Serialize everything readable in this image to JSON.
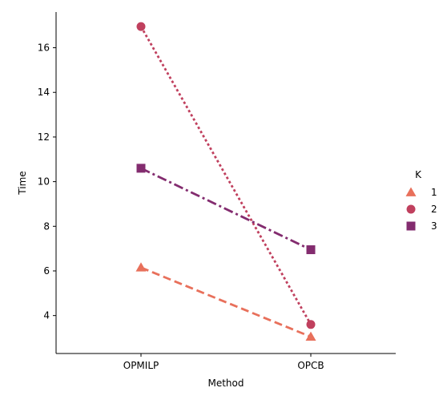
{
  "chart_data": {
    "type": "line",
    "xlabel": "Method",
    "ylabel": "Time",
    "categories": [
      "OPMILP",
      "OPCB"
    ],
    "ylim": [
      2.3,
      17.6
    ],
    "yticks": [
      4,
      6,
      8,
      10,
      12,
      14,
      16
    ],
    "grid": false,
    "legend": {
      "title": "K",
      "placement": "right",
      "entries": [
        "1",
        "2",
        "3"
      ]
    },
    "series": [
      {
        "name": "1",
        "values": [
          6.15,
          3.05
        ],
        "color": "#e8705b",
        "marker": "triangle",
        "linestyle": "dashed"
      },
      {
        "name": "2",
        "values": [
          16.95,
          3.6
        ],
        "color": "#c0405e",
        "marker": "circle",
        "linestyle": "dotted"
      },
      {
        "name": "3",
        "values": [
          10.6,
          6.95
        ],
        "color": "#832c6f",
        "marker": "square",
        "linestyle": "dashdot"
      }
    ]
  }
}
